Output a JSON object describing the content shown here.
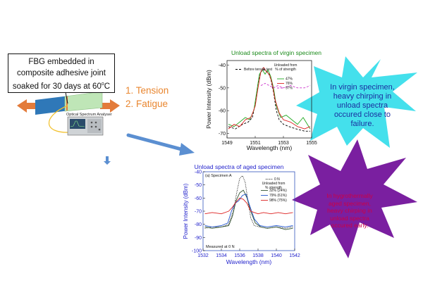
{
  "caption": {
    "line1": "FBG embedded in",
    "line2": "composite adhesive joint",
    "line3_prefix": "soaked for 30 days at 60",
    "line3_sup": "o",
    "line3_suffix": "C"
  },
  "steps": [
    "1.  Tension",
    "2.  Fatigue"
  ],
  "analyser_label": "Optical Spectrum Analyser",
  "burst_cyan": {
    "lines": [
      "In virgin specimen,",
      "heavy chirping in",
      "unload spectra",
      "occured close to",
      "failure."
    ],
    "color": "#44e0ec"
  },
  "burst_purple": {
    "lines": [
      "In hygrothermally",
      "aged specimen,",
      "heavy chirping in",
      "unload spectra",
      "occured early."
    ],
    "color": "#7a1fa0"
  },
  "colors": {
    "arrow_orange": "#e37b3a",
    "arrow_blue": "#5b8fd1",
    "plate_blue": "#2f78b8",
    "plate_green": "#bfe6b7",
    "fiber_yellow": "#f2c230",
    "series_black": "#000000",
    "series_green": "#22aa22",
    "series_red": "#dd2222",
    "series_magenta": "#cc33cc",
    "series_darkgreen": "#335533",
    "series_blue": "#2255cc",
    "title_green": "#1a8a1a",
    "title_blue": "#2222cc"
  },
  "chart_data": [
    {
      "type": "line",
      "title": "Unload spectra of virgin specimen",
      "xlabel": "Wavelength (nm)",
      "ylabel": "Power Intensity (dBm)",
      "xlim": [
        1549,
        1555
      ],
      "ylim": [
        -72,
        -38
      ],
      "xticks": [
        1549,
        1551,
        1553,
        1555
      ],
      "yticks": [
        -40,
        -50,
        -60,
        -70
      ],
      "legend_title": [
        "Unloaded from",
        "% of strength"
      ],
      "legend_placement": "top-right",
      "series": [
        {
          "name": "Before tensile test",
          "style": "dash",
          "color": "#000000",
          "x": [
            1549.1,
            1549.6,
            1550.1,
            1550.5,
            1550.8,
            1551.0,
            1551.2,
            1551.4,
            1551.6,
            1551.9,
            1552.1,
            1552.3,
            1552.5,
            1552.7,
            1553.0,
            1553.4,
            1553.9,
            1554.5,
            1554.9
          ],
          "y": [
            -67,
            -68,
            -66,
            -65,
            -63,
            -57,
            -48,
            -43,
            -42,
            -43,
            -46,
            -52,
            -60,
            -64,
            -66,
            -67,
            -68,
            -69,
            -69
          ]
        },
        {
          "name": "47%",
          "style": "solid",
          "color": "#22aa22",
          "x": [
            1549.1,
            1549.5,
            1549.9,
            1550.3,
            1550.6,
            1550.9,
            1551.1,
            1551.3,
            1551.5,
            1551.7,
            1551.9,
            1552.1,
            1552.3,
            1552.5,
            1552.8,
            1553.2,
            1553.6,
            1554.0,
            1554.4,
            1554.9
          ],
          "y": [
            -66,
            -67,
            -65,
            -63,
            -64,
            -60,
            -52,
            -44,
            -42,
            -44,
            -42,
            -45,
            -50,
            -58,
            -63,
            -62,
            -64,
            -66,
            -63,
            -68
          ]
        },
        {
          "name": "76%",
          "style": "solid",
          "color": "#dd2222",
          "x": [
            1549.1,
            1549.5,
            1549.9,
            1550.3,
            1550.7,
            1551.0,
            1551.2,
            1551.4,
            1551.6,
            1551.8,
            1552.0,
            1552.2,
            1552.4,
            1552.7,
            1553.0,
            1553.5,
            1554.0,
            1554.5,
            1554.9
          ],
          "y": [
            -68,
            -66,
            -67,
            -64,
            -63,
            -58,
            -50,
            -43,
            -41,
            -43,
            -44,
            -48,
            -55,
            -61,
            -64,
            -65,
            -67,
            -68,
            -67
          ]
        },
        {
          "name": "97%",
          "style": "dash",
          "color": "#cc33cc",
          "x": [
            1551.4,
            1551.7,
            1552.0,
            1552.3,
            1552.6,
            1553.0,
            1553.5,
            1554.0,
            1554.5,
            1554.9
          ],
          "y": [
            -49,
            -48,
            -49,
            -50,
            -49,
            -50,
            -49,
            -50,
            -50,
            -49
          ]
        }
      ]
    },
    {
      "type": "line",
      "title": "Unload spectra of aged specimen",
      "panel_label": "(a) Specimen A",
      "annotation": "Measured at 0 N",
      "xlabel": "Wavelength (nm)",
      "ylabel": "Power Intensity (dBm)",
      "xlim": [
        1532,
        1542
      ],
      "ylim": [
        -100,
        -40
      ],
      "xticks": [
        1532,
        1534,
        1536,
        1538,
        1540,
        1542
      ],
      "yticks": [
        -40,
        -50,
        -60,
        -70,
        -80,
        -90,
        -100
      ],
      "legend_title": [
        "Unloaded from",
        "% strength"
      ],
      "legend_placement": "top-right",
      "series": [
        {
          "name": "0 N",
          "style": "dot",
          "color": "#000000",
          "x": [
            1532.2,
            1533.0,
            1534.0,
            1534.8,
            1535.3,
            1535.7,
            1536.0,
            1536.3,
            1536.6,
            1536.9,
            1537.2,
            1537.6,
            1538.2,
            1539.0,
            1540.0,
            1541.0,
            1541.8
          ],
          "y": [
            -83,
            -82,
            -82,
            -80,
            -70,
            -55,
            -45,
            -43,
            -48,
            -62,
            -75,
            -81,
            -82,
            -83,
            -82,
            -83,
            -82
          ]
        },
        {
          "name": "32% (24%)",
          "style": "solid",
          "color": "#335533",
          "x": [
            1532.2,
            1533.0,
            1534.0,
            1534.8,
            1535.2,
            1535.6,
            1536.0,
            1536.4,
            1536.8,
            1537.2,
            1537.7,
            1538.3,
            1539.0,
            1540.0,
            1541.0,
            1541.8
          ],
          "y": [
            -82,
            -83,
            -82,
            -81,
            -74,
            -62,
            -56,
            -54,
            -60,
            -70,
            -79,
            -82,
            -83,
            -82,
            -84,
            -83
          ]
        },
        {
          "name": "79% (61%)",
          "style": "solid",
          "color": "#2255cc",
          "x": [
            1532.2,
            1533.0,
            1534.0,
            1534.7,
            1535.1,
            1535.5,
            1535.9,
            1536.3,
            1536.7,
            1537.1,
            1537.6,
            1538.2,
            1539.0,
            1540.0,
            1541.0,
            1541.8
          ],
          "y": [
            -81,
            -82,
            -81,
            -79,
            -70,
            -64,
            -62,
            -58,
            -57,
            -66,
            -76,
            -81,
            -82,
            -81,
            -82,
            -81
          ]
        },
        {
          "name": "98% (75%)",
          "style": "solid",
          "color": "#dd2222",
          "x": [
            1532.2,
            1533.0,
            1534.0,
            1534.8,
            1535.2,
            1535.6,
            1536.0,
            1536.4,
            1536.8,
            1537.2,
            1537.6,
            1538.0,
            1538.6,
            1539.4,
            1540.2,
            1541.0,
            1541.8
          ],
          "y": [
            -72,
            -71,
            -72,
            -70,
            -67,
            -63,
            -60,
            -61,
            -64,
            -70,
            -71,
            -72,
            -71,
            -72,
            -71,
            -72,
            -71
          ]
        }
      ]
    }
  ]
}
